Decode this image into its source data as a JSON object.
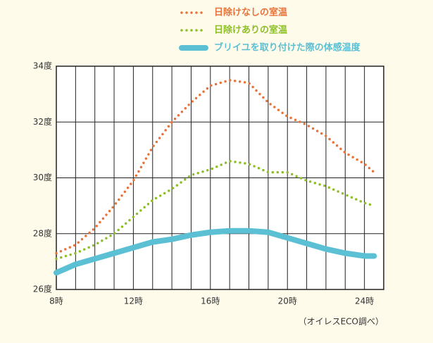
{
  "chart_data": {
    "type": "line",
    "note": "（オイレスECO調べ）",
    "x": [
      8,
      9,
      10,
      11,
      12,
      13,
      14,
      15,
      16,
      17,
      18,
      19,
      20,
      21,
      22,
      23,
      24,
      24.5
    ],
    "series": [
      {
        "name": "日除けなしの室温",
        "color": "#e8733a",
        "style": "dotted",
        "values": [
          27.3,
          27.6,
          28.2,
          29.0,
          29.9,
          31.1,
          32.0,
          32.7,
          33.3,
          33.5,
          33.4,
          32.7,
          32.2,
          31.9,
          31.5,
          30.9,
          30.5,
          30.2
        ]
      },
      {
        "name": "日除けありの室温",
        "color": "#8cbf26",
        "style": "dotted",
        "values": [
          27.1,
          27.3,
          27.6,
          28.0,
          28.6,
          29.2,
          29.6,
          30.1,
          30.3,
          30.6,
          30.5,
          30.2,
          30.2,
          29.9,
          29.7,
          29.4,
          29.1,
          29.0
        ]
      },
      {
        "name": "ブリイユを取り付けた際の体感温度",
        "color": "#5bc0d4",
        "style": "thick",
        "values": [
          26.6,
          26.9,
          27.1,
          27.3,
          27.5,
          27.7,
          27.8,
          27.95,
          28.05,
          28.1,
          28.1,
          28.05,
          27.85,
          27.65,
          27.45,
          27.3,
          27.2,
          27.2
        ]
      }
    ],
    "xlim": [
      8,
      25
    ],
    "xticks": [
      {
        "value": 8,
        "label": "8時"
      },
      {
        "value": 12,
        "label": "12時"
      },
      {
        "value": 16,
        "label": "16時"
      },
      {
        "value": 20,
        "label": "20時"
      },
      {
        "value": 24,
        "label": "24時"
      }
    ],
    "xgrid": [
      8,
      9,
      10,
      11,
      12,
      13,
      14,
      15,
      16,
      17,
      18,
      19,
      20,
      21,
      22,
      23,
      24,
      25
    ],
    "ylim": [
      26,
      34
    ],
    "yticks": [
      {
        "value": 26,
        "label": "26度"
      },
      {
        "value": 28,
        "label": "28度"
      },
      {
        "value": 30,
        "label": "30度"
      },
      {
        "value": 32,
        "label": "32度"
      },
      {
        "value": 34,
        "label": "34度"
      }
    ],
    "grid": true
  }
}
